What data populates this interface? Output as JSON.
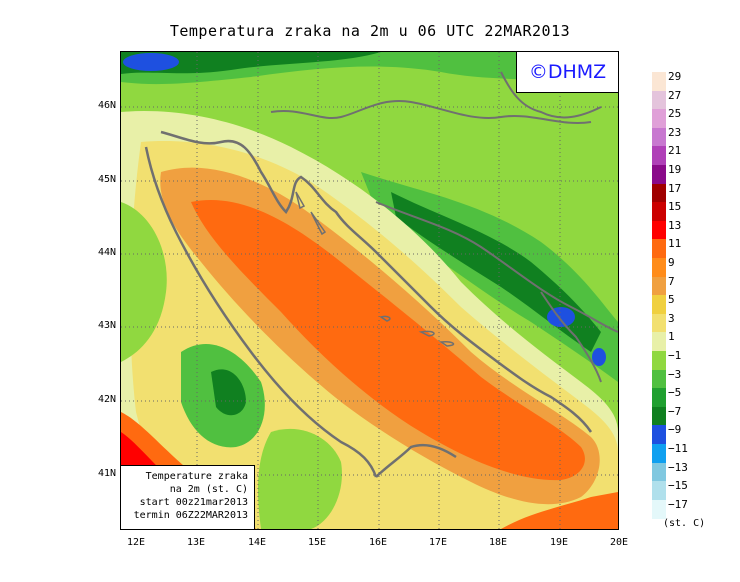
{
  "title": "Temperatura zraka na 2m u 06 UTC 22MAR2013",
  "logo": "©DHMZ",
  "infobox": {
    "line1": "Temperature zraka",
    "line2": "na 2m (st. C)",
    "line3": "start 00z21mar2013",
    "line4": "termin 06Z22MAR2013"
  },
  "lat_labels": [
    "46N",
    "45N",
    "44N",
    "43N",
    "42N",
    "41N"
  ],
  "lon_labels": [
    "12E",
    "13E",
    "14E",
    "15E",
    "16E",
    "17E",
    "18E",
    "19E",
    "20E"
  ],
  "legend": {
    "labels": [
      "29",
      "27",
      "25",
      "23",
      "21",
      "19",
      "17",
      "15",
      "13",
      "11",
      "9",
      "7",
      "5",
      "3",
      "1",
      "−1",
      "−3",
      "−5",
      "−7",
      "−9",
      "−11",
      "−13",
      "−15",
      "−17"
    ],
    "colors": [
      "#fbe6d4",
      "#e4c4dc",
      "#e0a0d8",
      "#c878d0",
      "#b040b8",
      "#8a0a8a",
      "#a00000",
      "#cc0000",
      "#ff0000",
      "#ff6a10",
      "#ff8c1a",
      "#f0a040",
      "#f0d040",
      "#f2e070",
      "#e8f0a8",
      "#90d840",
      "#50c040",
      "#20a030",
      "#108020",
      "#1e50e0",
      "#10a0f0",
      "#80c8e0",
      "#b0e0ec",
      "#e4f8fa"
    ],
    "unit": "(st. C)"
  },
  "colors": {
    "sea_warm": "#ff6a10",
    "sea_mid": "#f0a040",
    "coast_cool": "#f2e070",
    "land_light": "#90d840",
    "land_mid": "#50c040",
    "land_dark": "#108020",
    "cold": "#1e50e0",
    "hot": "#ff0000",
    "border_lines": "#707070",
    "logo_text": "#1a1aff"
  }
}
